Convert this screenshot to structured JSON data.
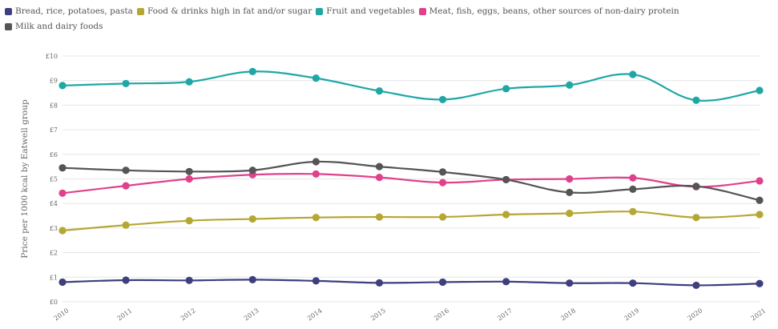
{
  "chart_data": {
    "type": "line",
    "title": "",
    "xlabel": "",
    "ylabel": "Price per 1000 kcal by Eatwell group",
    "x": [
      "2010",
      "2011",
      "2012",
      "2013",
      "2014",
      "2015",
      "2016",
      "2017",
      "2018",
      "2019",
      "2020",
      "2021"
    ],
    "y_ticks": [
      "£0",
      "£1",
      "£2",
      "£3",
      "£4",
      "£5",
      "£6",
      "£7",
      "£8",
      "£9",
      "£10"
    ],
    "ylim": [
      0,
      10
    ],
    "grid": "horizontal",
    "legend_position": "top-left",
    "series": [
      {
        "name": "Bread, rice, potatoes, pasta",
        "color": "#3d3f7e",
        "values": [
          0.8,
          0.88,
          0.87,
          0.9,
          0.85,
          0.77,
          0.8,
          0.82,
          0.76,
          0.76,
          0.67,
          0.74
        ]
      },
      {
        "name": "Food & drinks high in fat and/or sugar",
        "color": "#b5a733",
        "values": [
          2.9,
          3.12,
          3.3,
          3.37,
          3.43,
          3.45,
          3.45,
          3.55,
          3.6,
          3.67,
          3.43,
          3.55
        ]
      },
      {
        "name": "Fruit and vegetables",
        "color": "#1fa7a6",
        "values": [
          8.8,
          8.88,
          8.95,
          9.37,
          9.1,
          8.58,
          8.23,
          8.67,
          8.82,
          9.25,
          8.2,
          8.6
        ]
      },
      {
        "name": "Meat, fish, eggs, beans, other sources of non-dairy protein",
        "color": "#e0418c",
        "values": [
          4.42,
          4.72,
          5.0,
          5.17,
          5.2,
          5.06,
          4.85,
          4.97,
          5.0,
          5.04,
          4.68,
          4.92
        ]
      },
      {
        "name": "Milk and dairy foods",
        "color": "#555555",
        "values": [
          5.45,
          5.35,
          5.3,
          5.35,
          5.7,
          5.5,
          5.28,
          4.97,
          4.45,
          4.58,
          4.7,
          4.13
        ]
      }
    ]
  }
}
